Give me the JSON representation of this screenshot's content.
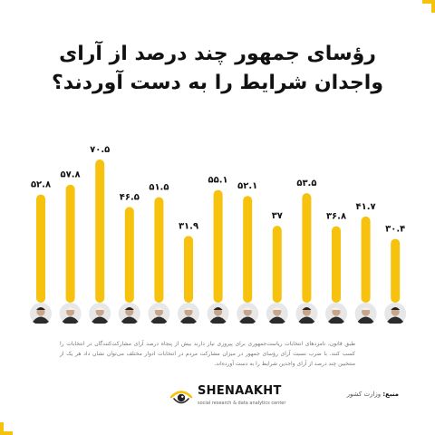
{
  "header": {
    "title_line1": "رؤسای جمهور چند درصد از آرای",
    "title_line2": "واجدان شرایط را به دست آوردند؟"
  },
  "description": "طبق قانون، نامزدهای انتخابات ریاست‌جمهوری برای پیروزی نیاز دارند بیش از پنجاه درصد آرای مشارکت‌کنندگان در انتخابات را کسب کنند. با ضرب نسبت آرای رؤسای جمهور در میزان مشارکت مردم در انتخابات ادوار مختلف می‌توان نشان داد هر یک از منتخبین چند درصد از آرای واجدین شرایط را به دست آورده‌اند.",
  "brand": {
    "name": "SHENAAKHT",
    "subtitle": "social research & data analytics center"
  },
  "source": {
    "label": "منبع:",
    "text": "وزارت کشور"
  },
  "colors": {
    "bar": "#f6c20e",
    "accent": "#f6c20e",
    "text": "#111111"
  },
  "chart_data": {
    "type": "bar",
    "values": [
      52.8,
      57.8,
      70.5,
      46.5,
      51.5,
      31.9,
      55.1,
      52.1,
      37,
      53.5,
      36.8,
      41.7,
      30.4
    ],
    "value_labels": [
      "۵۲.۸",
      "۵۷.۸",
      "۷۰.۵",
      "۴۶.۵",
      "۵۱.۵",
      "۳۱.۹",
      "۵۵.۱",
      "۵۲.۱",
      "۳۷",
      "۵۳.۵",
      "۳۶.۸",
      "۴۱.۷",
      "۳۰.۴"
    ],
    "ylim": [
      0,
      80
    ],
    "grid": false,
    "legend": "none",
    "category_icons": [
      "portrait",
      "portrait",
      "portrait",
      "portrait",
      "portrait",
      "portrait",
      "portrait",
      "portrait",
      "portrait",
      "portrait",
      "portrait",
      "portrait",
      "portrait"
    ]
  }
}
